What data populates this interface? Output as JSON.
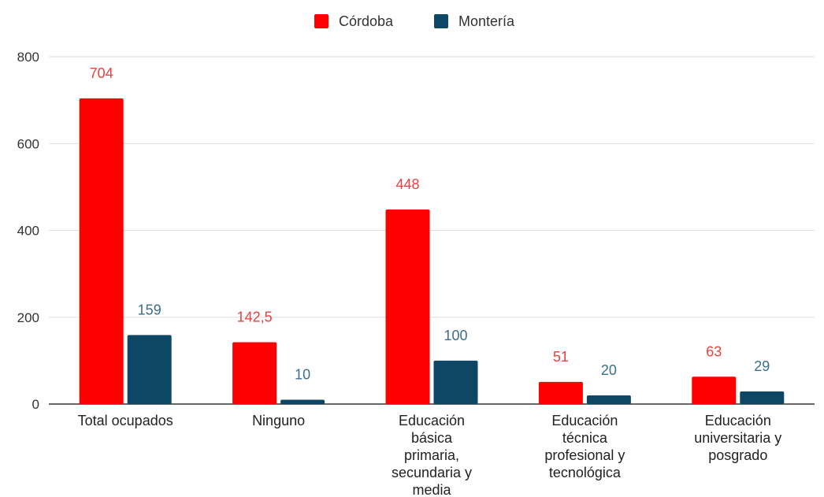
{
  "chart_data": {
    "type": "bar",
    "categories": [
      [
        "Total ocupados"
      ],
      [
        "Ninguno"
      ],
      [
        "Educación",
        "básica",
        "primaria,",
        "secundaria y",
        "media"
      ],
      [
        "Educación",
        "técnica",
        "profesional y",
        "tecnológica"
      ],
      [
        "Educación",
        "universitaria y",
        "posgrado"
      ]
    ],
    "series": [
      {
        "name": "Córdoba",
        "color": "#ff0000",
        "values": [
          704,
          142.5,
          448,
          51,
          63
        ],
        "labels": [
          "704",
          "142,5",
          "448",
          "51",
          "63"
        ]
      },
      {
        "name": "Montería",
        "color": "#0e4766",
        "values": [
          159,
          10,
          100,
          20,
          29
        ],
        "labels": [
          "159",
          "10",
          "100",
          "20",
          "29"
        ]
      }
    ],
    "ylim": [
      0,
      800
    ],
    "yticks": [
      0,
      200,
      400,
      600,
      800
    ],
    "grid": true,
    "legend_position": "top-center",
    "label_colors": [
      "#e8423f",
      "#3a6e8c"
    ],
    "title": "",
    "xlabel": "",
    "ylabel": ""
  }
}
